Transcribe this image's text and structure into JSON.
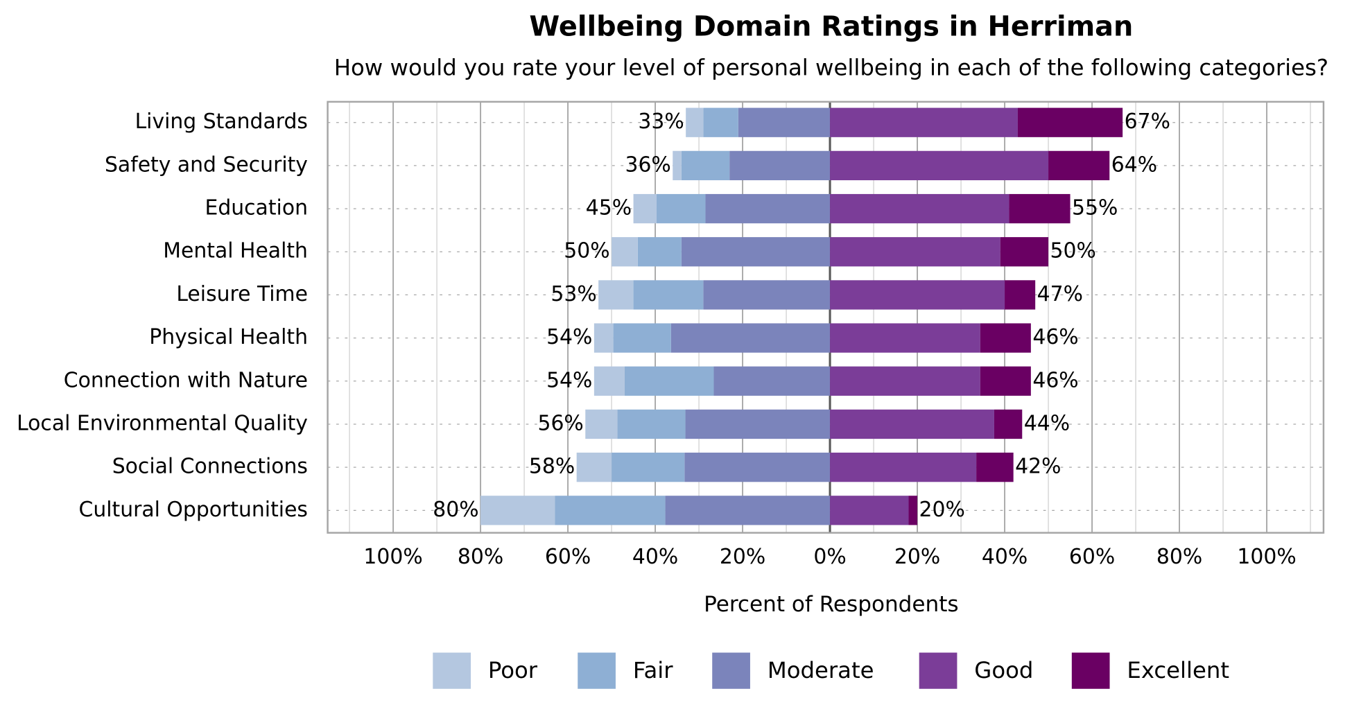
{
  "chart_data": {
    "type": "diverging-bar",
    "title": "Wellbeing Domain Ratings in Herriman",
    "subtitle": "How would you rate your level of personal wellbeing in each of the following categories?",
    "x_axis_label": "Percent of Respondents",
    "categories": [
      "Living Standards",
      "Safety and Security",
      "Education",
      "Mental Health",
      "Leisure Time",
      "Physical Health",
      "Connection with Nature",
      "Local Environmental Quality",
      "Social Connections",
      "Cultural Opportunities"
    ],
    "series": [
      {
        "name": "Poor",
        "color": "#b4c7e0",
        "side": "left",
        "values": [
          4,
          2,
          5.3,
          6,
          8,
          4.4,
          7,
          7.3,
          8,
          17
        ]
      },
      {
        "name": "Fair",
        "color": "#8eafd4",
        "side": "left",
        "values": [
          8,
          11,
          11.2,
          10,
          16,
          13.2,
          20.4,
          15.6,
          16.7,
          25.3
        ]
      },
      {
        "name": "Moderate",
        "color": "#7b84bb",
        "side": "left",
        "values": [
          21,
          23,
          28.5,
          34,
          29,
          36.4,
          26.6,
          33.1,
          33.3,
          37.7
        ]
      },
      {
        "name": "Good",
        "color": "#7b3d98",
        "side": "right",
        "values": [
          43,
          50,
          41,
          39,
          40,
          34.4,
          34.4,
          37.6,
          33.5,
          18
        ]
      },
      {
        "name": "Excellent",
        "color": "#6a0063",
        "side": "right",
        "values": [
          24,
          14,
          14,
          11,
          7,
          11.6,
          11.6,
          6.4,
          8.5,
          2
        ]
      }
    ],
    "left_totals": {
      "values": [
        33,
        36,
        45,
        50,
        53,
        54,
        54,
        56,
        58,
        80
      ],
      "value_labels": [
        "33%",
        "36%",
        "45%",
        "50%",
        "53%",
        "54%",
        "54%",
        "56%",
        "58%",
        "80%"
      ]
    },
    "right_totals": {
      "values": [
        67,
        64,
        55,
        50,
        47,
        46,
        46,
        44,
        42,
        20
      ],
      "value_labels": [
        "67%",
        "64%",
        "55%",
        "50%",
        "47%",
        "46%",
        "46%",
        "44%",
        "42%",
        "20%"
      ]
    },
    "xlim": [
      -115,
      113
    ],
    "xticks": [
      {
        "value": -100,
        "label": "100%"
      },
      {
        "value": -80,
        "label": "80%"
      },
      {
        "value": -60,
        "label": "60%"
      },
      {
        "value": -40,
        "label": "40%"
      },
      {
        "value": -20,
        "label": "20%"
      },
      {
        "value": 0,
        "label": "0%"
      },
      {
        "value": 20,
        "label": "20%"
      },
      {
        "value": 40,
        "label": "40%"
      },
      {
        "value": 60,
        "label": "60%"
      },
      {
        "value": 80,
        "label": "80%"
      },
      {
        "value": 100,
        "label": "100%"
      }
    ],
    "minor_xticks": [
      -110,
      -90,
      -70,
      -50,
      -30,
      -10,
      10,
      30,
      50,
      70,
      90,
      110
    ],
    "grid": true
  }
}
